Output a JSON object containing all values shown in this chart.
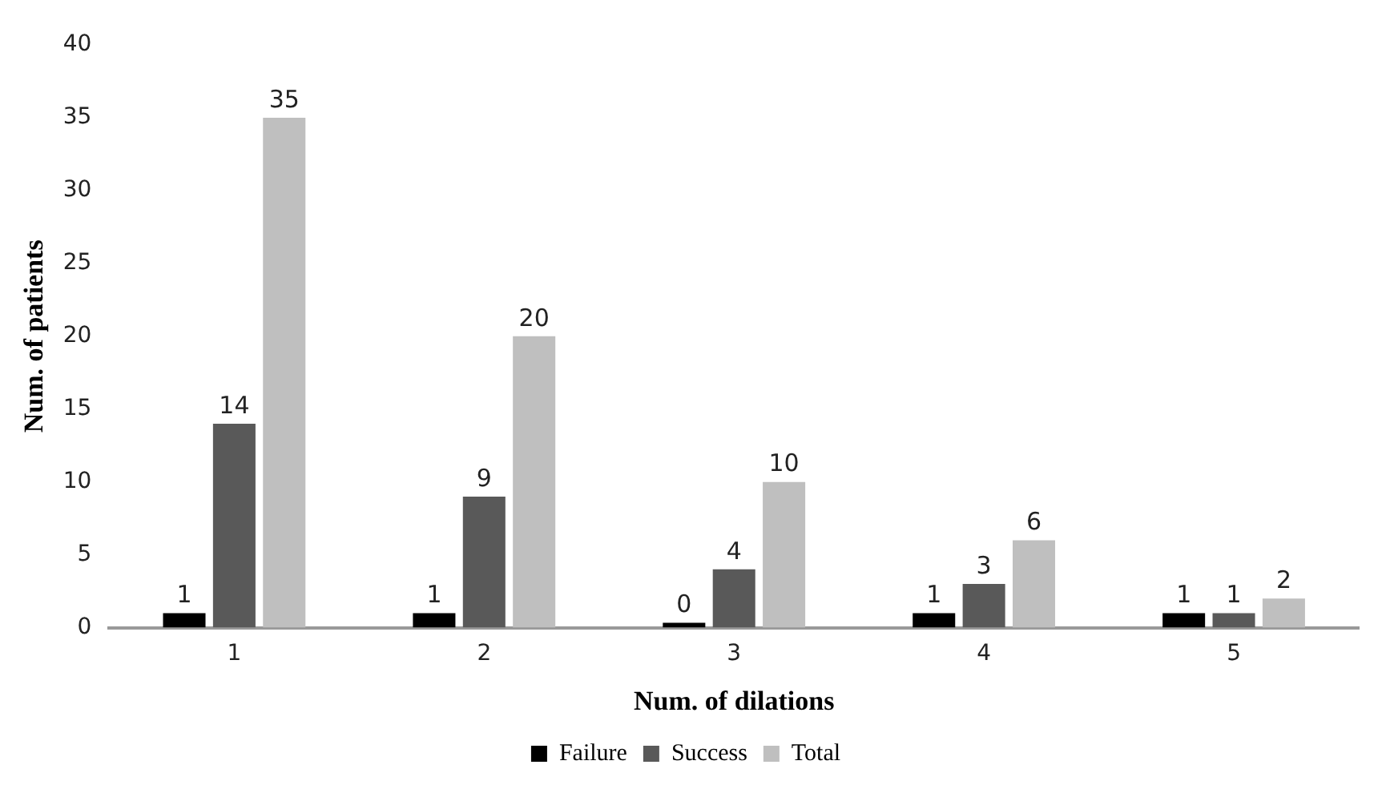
{
  "chart_data": {
    "type": "bar",
    "xlabel": "Num. of dilations",
    "ylabel": "Num. of patients",
    "categories": [
      "1",
      "2",
      "3",
      "4",
      "5"
    ],
    "series": [
      {
        "name": "Failure",
        "color": "#000000",
        "values": [
          1,
          1,
          0,
          1,
          1
        ]
      },
      {
        "name": "Success",
        "color": "#595959",
        "values": [
          14,
          9,
          4,
          3,
          1
        ]
      },
      {
        "name": "Total",
        "color": "#bfbfbf",
        "values": [
          35,
          20,
          10,
          6,
          2
        ]
      }
    ],
    "ylim": [
      0,
      40
    ],
    "yticks": [
      0,
      5,
      10,
      15,
      20,
      25,
      30,
      35,
      40
    ],
    "grid": false,
    "legend": "bottom",
    "data_labels": true
  }
}
